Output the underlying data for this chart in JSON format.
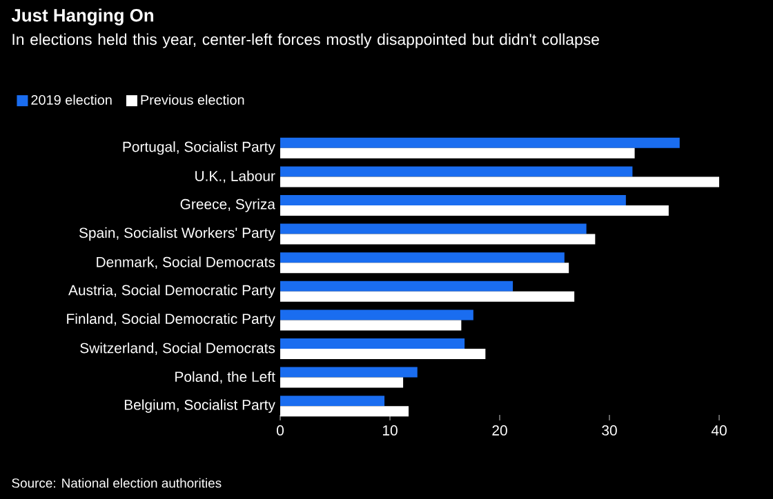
{
  "chart_data": {
    "type": "bar",
    "orientation": "horizontal",
    "title": "Just Hanging On",
    "subtitle": "In elections held this year, center-left forces mostly disappointed but didn't collapse",
    "categories": [
      "Portugal, Socialist Party",
      "U.K., Labour",
      "Greece, Syriza",
      "Spain, Socialist Workers' Party",
      "Denmark, Social Democrats",
      "Austria, Social Democratic Party",
      "Finland, Social Democratic Party",
      "Switzerland, Social Democrats",
      "Poland, the Left",
      "Belgium, Socialist Party"
    ],
    "series": [
      {
        "name": "2019 election",
        "color": "#1a6df0",
        "values": [
          36.4,
          32.1,
          31.5,
          27.9,
          25.9,
          21.2,
          17.6,
          16.8,
          12.5,
          9.5
        ]
      },
      {
        "name": "Previous election",
        "color": "#ffffff",
        "values": [
          32.3,
          40.0,
          35.4,
          28.7,
          26.3,
          26.8,
          16.5,
          18.7,
          11.2,
          11.7
        ]
      }
    ],
    "xlim": [
      0,
      40
    ],
    "xticks": [
      0,
      10,
      20,
      30,
      40
    ],
    "legend": "top left",
    "annotations": [
      "Source: National election authorities"
    ]
  }
}
